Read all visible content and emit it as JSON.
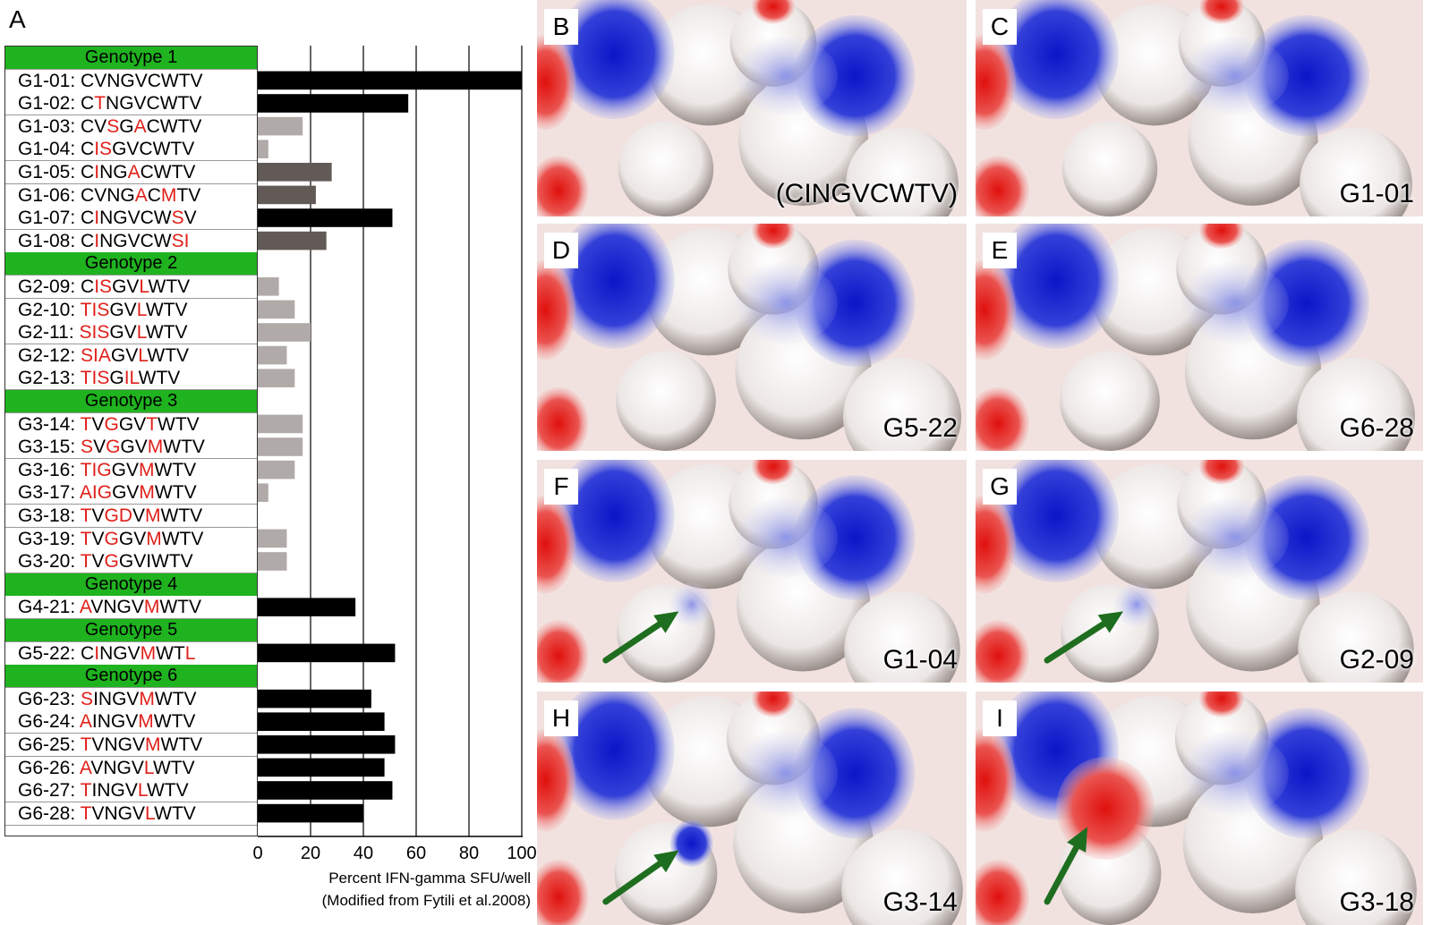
{
  "panel_a_label": "A",
  "chart_data": {
    "type": "bar",
    "orientation": "horizontal",
    "xlim": [
      0,
      100
    ],
    "xticks": [
      "0",
      "20",
      "40",
      "60",
      "80",
      "100"
    ],
    "xlabel": "Percent IFN-gamma SFU/well",
    "xlabel_note": "(Modified from Fytili et al.2008)",
    "grid": "vertical",
    "groups": [
      {
        "name": "Genotype 1",
        "peptides": [
          {
            "id": "G1-01",
            "seq": [
              [
                "CVNGVCWTV",
                0
              ]
            ],
            "value": 100,
            "shade": "#000000"
          },
          {
            "id": "G1-02",
            "seq": [
              [
                "C",
                0
              ],
              [
                "T",
                1
              ],
              [
                "NGVCWTV",
                0
              ]
            ],
            "value": 57,
            "shade": "#000000"
          },
          {
            "id": "G1-03",
            "seq": [
              [
                "CV",
                0
              ],
              [
                "S",
                1
              ],
              [
                "G",
                0
              ],
              [
                "A",
                1
              ],
              [
                "CWTV",
                0
              ]
            ],
            "value": 17,
            "shade": "#b0aaa8"
          },
          {
            "id": "G1-04",
            "seq": [
              [
                "C",
                0
              ],
              [
                "IS",
                1
              ],
              [
                "GVCWTV",
                0
              ]
            ],
            "value": 4,
            "shade": "#b0aaa8"
          },
          {
            "id": "G1-05",
            "seq": [
              [
                "C",
                0
              ],
              [
                "I",
                1
              ],
              [
                "NG",
                0
              ],
              [
                "A",
                1
              ],
              [
                "CWTV",
                0
              ]
            ],
            "value": 28,
            "shade": "#625a56"
          },
          {
            "id": "G1-06",
            "seq": [
              [
                "CVNG",
                0
              ],
              [
                "A",
                1
              ],
              [
                "C",
                0
              ],
              [
                "M",
                1
              ],
              [
                "TV",
                0
              ]
            ],
            "value": 22,
            "shade": "#625a56"
          },
          {
            "id": "G1-07",
            "seq": [
              [
                "C",
                0
              ],
              [
                "I",
                1
              ],
              [
                "NGVCW",
                0
              ],
              [
                "S",
                1
              ],
              [
                "V",
                0
              ]
            ],
            "value": 51,
            "shade": "#000000"
          },
          {
            "id": "G1-08",
            "seq": [
              [
                "C",
                0
              ],
              [
                "I",
                1
              ],
              [
                "NGVCW",
                0
              ],
              [
                "SI",
                1
              ]
            ],
            "value": 26,
            "shade": "#625a56"
          }
        ]
      },
      {
        "name": "Genotype 2",
        "peptides": [
          {
            "id": "G2-09",
            "seq": [
              [
                "C",
                0
              ],
              [
                "IS",
                1
              ],
              [
                "GV",
                0
              ],
              [
                "L",
                1
              ],
              [
                "WTV",
                0
              ]
            ],
            "value": 8,
            "shade": "#b0aaa8"
          },
          {
            "id": "G2-10",
            "seq": [
              [
                "TIS",
                1
              ],
              [
                "GV",
                0
              ],
              [
                "L",
                1
              ],
              [
                "WTV",
                0
              ]
            ],
            "value": 14,
            "shade": "#b0aaa8"
          },
          {
            "id": "G2-11",
            "seq": [
              [
                "SIS",
                1
              ],
              [
                "GV",
                0
              ],
              [
                "L",
                1
              ],
              [
                "WTV",
                0
              ]
            ],
            "value": 20,
            "shade": "#b0aaa8"
          },
          {
            "id": "G2-12",
            "seq": [
              [
                "SIA",
                1
              ],
              [
                "GV",
                0
              ],
              [
                "L",
                1
              ],
              [
                "WTV",
                0
              ]
            ],
            "value": 11,
            "shade": "#b0aaa8"
          },
          {
            "id": "G2-13",
            "seq": [
              [
                "TIS",
                1
              ],
              [
                "G",
                0
              ],
              [
                "IL",
                1
              ],
              [
                "WTV",
                0
              ]
            ],
            "value": 14,
            "shade": "#b0aaa8"
          }
        ]
      },
      {
        "name": "Genotype 3",
        "peptides": [
          {
            "id": "G3-14",
            "seq": [
              [
                "T",
                1
              ],
              [
                "V",
                0
              ],
              [
                "G",
                1
              ],
              [
                "GV",
                0
              ],
              [
                "T",
                1
              ],
              [
                "WTV",
                0
              ]
            ],
            "value": 17,
            "shade": "#b0aaa8"
          },
          {
            "id": "G3-15",
            "seq": [
              [
                "S",
                1
              ],
              [
                "V",
                0
              ],
              [
                "G",
                1
              ],
              [
                "GV",
                0
              ],
              [
                "M",
                1
              ],
              [
                "WTV",
                0
              ]
            ],
            "value": 17,
            "shade": "#b0aaa8"
          },
          {
            "id": "G3-16",
            "seq": [
              [
                "TIG",
                1
              ],
              [
                "GV",
                0
              ],
              [
                "M",
                1
              ],
              [
                "WTV",
                0
              ]
            ],
            "value": 14,
            "shade": "#b0aaa8"
          },
          {
            "id": "G3-17",
            "seq": [
              [
                "AIG",
                1
              ],
              [
                "GV",
                0
              ],
              [
                "M",
                1
              ],
              [
                "WTV",
                0
              ]
            ],
            "value": 4,
            "shade": "#b0aaa8"
          },
          {
            "id": "G3-18",
            "seq": [
              [
                "T",
                1
              ],
              [
                "V",
                0
              ],
              [
                "GD",
                1
              ],
              [
                "V",
                0
              ],
              [
                "M",
                1
              ],
              [
                "WTV",
                0
              ]
            ],
            "value": 0,
            "shade": "#b0aaa8"
          },
          {
            "id": "G3-19",
            "seq": [
              [
                "T",
                1
              ],
              [
                "V",
                0
              ],
              [
                "G",
                1
              ],
              [
                "GV",
                0
              ],
              [
                "M",
                1
              ],
              [
                "WTV",
                0
              ]
            ],
            "value": 11,
            "shade": "#b0aaa8"
          },
          {
            "id": "G3-20",
            "seq": [
              [
                "T",
                1
              ],
              [
                "V",
                0
              ],
              [
                "G",
                1
              ],
              [
                "GVIWTV",
                0
              ]
            ],
            "value": 11,
            "shade": "#b0aaa8"
          }
        ]
      },
      {
        "name": "Genotype 4",
        "peptides": [
          {
            "id": "G4-21",
            "seq": [
              [
                "A",
                1
              ],
              [
                "VNGV",
                0
              ],
              [
                "M",
                1
              ],
              [
                "WTV",
                0
              ]
            ],
            "value": 37,
            "shade": "#000000"
          }
        ]
      },
      {
        "name": "Genotype 5",
        "peptides": [
          {
            "id": "G5-22",
            "seq": [
              [
                "C",
                0
              ],
              [
                "I",
                1
              ],
              [
                "NGV",
                0
              ],
              [
                "M",
                1
              ],
              [
                "WT",
                0
              ],
              [
                "L",
                1
              ]
            ],
            "value": 52,
            "shade": "#000000"
          }
        ]
      },
      {
        "name": "Genotype 6",
        "peptides": [
          {
            "id": "G6-23",
            "seq": [
              [
                "S",
                1
              ],
              [
                "INGV",
                0
              ],
              [
                "M",
                1
              ],
              [
                "WTV",
                0
              ]
            ],
            "value": 43,
            "shade": "#000000"
          },
          {
            "id": "G6-24",
            "seq": [
              [
                "A",
                1
              ],
              [
                "INGV",
                0
              ],
              [
                "M",
                1
              ],
              [
                "WTV",
                0
              ]
            ],
            "value": 48,
            "shade": "#000000"
          },
          {
            "id": "G6-25",
            "seq": [
              [
                "T",
                1
              ],
              [
                "VNGV",
                0
              ],
              [
                "M",
                1
              ],
              [
                "WTV",
                0
              ]
            ],
            "value": 52,
            "shade": "#000000"
          },
          {
            "id": "G6-26",
            "seq": [
              [
                "A",
                1
              ],
              [
                "VNGV",
                0
              ],
              [
                "L",
                1
              ],
              [
                "WTV",
                0
              ]
            ],
            "value": 48,
            "shade": "#000000"
          },
          {
            "id": "G6-27",
            "seq": [
              [
                "T",
                1
              ],
              [
                "INGV",
                0
              ],
              [
                "L",
                1
              ],
              [
                "WTV",
                0
              ]
            ],
            "value": 51,
            "shade": "#000000"
          },
          {
            "id": "G6-28",
            "seq": [
              [
                "T",
                1
              ],
              [
                "VNGV",
                0
              ],
              [
                "L",
                1
              ],
              [
                "WTV",
                0
              ]
            ],
            "value": 40,
            "shade": "#000000"
          }
        ]
      }
    ]
  },
  "colors": {
    "mutation": "#e0201a",
    "genotype_header": "#1fb31f",
    "arrow": "#1f6e1f"
  },
  "surface_panels": [
    {
      "letter": "B",
      "tag": "(CINGVCWTV)",
      "arrow": false,
      "spot": "none"
    },
    {
      "letter": "C",
      "tag": "G1-01",
      "arrow": false,
      "spot": "none"
    },
    {
      "letter": "D",
      "tag": "G5-22",
      "arrow": false,
      "spot": "none"
    },
    {
      "letter": "E",
      "tag": "G6-28",
      "arrow": false,
      "spot": "none"
    },
    {
      "letter": "F",
      "tag": "G1-04",
      "arrow": true,
      "spot": "light-blue"
    },
    {
      "letter": "G",
      "tag": "G2-09",
      "arrow": true,
      "spot": "light-blue"
    },
    {
      "letter": "H",
      "tag": "G3-14",
      "arrow": true,
      "spot": "blue"
    },
    {
      "letter": "I",
      "tag": "G3-18",
      "arrow": true,
      "spot": "red"
    }
  ]
}
